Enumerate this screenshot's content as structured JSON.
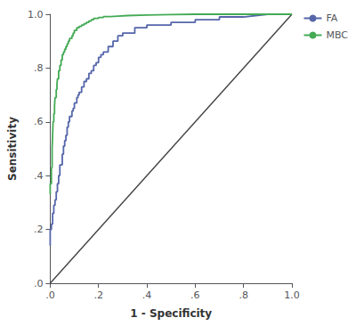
{
  "chart_data": {
    "type": "line",
    "title": "",
    "xlabel": "1 - Specificity",
    "ylabel": "Sensitivity",
    "xlim": [
      0.0,
      1.0
    ],
    "ylim": [
      0.0,
      1.0
    ],
    "xticks": [
      {
        "value": 0.0,
        "label": ".0"
      },
      {
        "value": 0.2,
        "label": ".2"
      },
      {
        "value": 0.4,
        "label": ".4"
      },
      {
        "value": 0.6,
        "label": ".6"
      },
      {
        "value": 0.8,
        "label": ".8"
      },
      {
        "value": 1.0,
        "label": "1.0"
      }
    ],
    "yticks": [
      {
        "value": 0.0,
        "label": ".0"
      },
      {
        "value": 0.2,
        "label": ".2"
      },
      {
        "value": 0.4,
        "label": ".4"
      },
      {
        "value": 0.6,
        "label": ".6"
      },
      {
        "value": 0.8,
        "label": ".8"
      },
      {
        "value": 1.0,
        "label": "1.0"
      }
    ],
    "grid": false,
    "legend": "upper right",
    "series": [
      {
        "color": "#444444",
        "x": [
          0,
          1
        ],
        "values": [
          0,
          1
        ]
      },
      {
        "name": "FA",
        "color": "#5566aa",
        "x": [
          0.0,
          0.0,
          0.005,
          0.005,
          0.01,
          0.01,
          0.015,
          0.015,
          0.02,
          0.02,
          0.025,
          0.025,
          0.03,
          0.03,
          0.035,
          0.035,
          0.04,
          0.04,
          0.05,
          0.05,
          0.055,
          0.055,
          0.06,
          0.06,
          0.065,
          0.065,
          0.07,
          0.07,
          0.075,
          0.075,
          0.08,
          0.08,
          0.09,
          0.09,
          0.095,
          0.095,
          0.1,
          0.1,
          0.11,
          0.11,
          0.115,
          0.115,
          0.12,
          0.12,
          0.13,
          0.13,
          0.14,
          0.14,
          0.15,
          0.15,
          0.16,
          0.16,
          0.17,
          0.17,
          0.18,
          0.18,
          0.19,
          0.19,
          0.2,
          0.2,
          0.21,
          0.21,
          0.22,
          0.22,
          0.24,
          0.24,
          0.26,
          0.26,
          0.28,
          0.28,
          0.3,
          0.3,
          0.35,
          0.35,
          0.4,
          0.4,
          0.5,
          0.5,
          0.6,
          0.6,
          0.7,
          0.7,
          0.8,
          0.9,
          1.0
        ],
        "values": [
          0.14,
          0.2,
          0.2,
          0.22,
          0.22,
          0.26,
          0.26,
          0.29,
          0.29,
          0.31,
          0.31,
          0.34,
          0.34,
          0.37,
          0.37,
          0.4,
          0.4,
          0.44,
          0.44,
          0.48,
          0.48,
          0.51,
          0.51,
          0.53,
          0.53,
          0.55,
          0.55,
          0.58,
          0.58,
          0.6,
          0.6,
          0.62,
          0.62,
          0.64,
          0.64,
          0.65,
          0.65,
          0.67,
          0.67,
          0.69,
          0.69,
          0.7,
          0.7,
          0.71,
          0.71,
          0.73,
          0.73,
          0.75,
          0.75,
          0.76,
          0.76,
          0.78,
          0.78,
          0.79,
          0.79,
          0.81,
          0.81,
          0.82,
          0.82,
          0.84,
          0.84,
          0.85,
          0.85,
          0.86,
          0.86,
          0.88,
          0.88,
          0.9,
          0.9,
          0.92,
          0.92,
          0.93,
          0.93,
          0.95,
          0.95,
          0.96,
          0.96,
          0.97,
          0.97,
          0.98,
          0.98,
          0.99,
          0.99,
          1.0,
          1.0
        ]
      },
      {
        "name": "MBC",
        "color": "#44aa55",
        "x": [
          0.0,
          0.0,
          0.005,
          0.005,
          0.008,
          0.008,
          0.01,
          0.01,
          0.012,
          0.012,
          0.015,
          0.015,
          0.018,
          0.018,
          0.02,
          0.02,
          0.025,
          0.025,
          0.028,
          0.028,
          0.03,
          0.03,
          0.035,
          0.035,
          0.04,
          0.04,
          0.045,
          0.045,
          0.05,
          0.05,
          0.055,
          0.055,
          0.06,
          0.06,
          0.065,
          0.065,
          0.07,
          0.07,
          0.075,
          0.075,
          0.08,
          0.08,
          0.09,
          0.09,
          0.095,
          0.095,
          0.1,
          0.1,
          0.11,
          0.11,
          0.12,
          0.12,
          0.13,
          0.13,
          0.14,
          0.14,
          0.15,
          0.15,
          0.16,
          0.16,
          0.17,
          0.17,
          0.18,
          0.18,
          0.2,
          0.2,
          0.22,
          0.22,
          0.25,
          0.25,
          0.28,
          0.28,
          0.32,
          0.32,
          0.4,
          0.4,
          0.5,
          0.6,
          0.7,
          0.8,
          0.9,
          1.0
        ],
        "values": [
          0.33,
          0.37,
          0.37,
          0.43,
          0.43,
          0.5,
          0.5,
          0.55,
          0.55,
          0.6,
          0.6,
          0.63,
          0.63,
          0.66,
          0.66,
          0.69,
          0.69,
          0.72,
          0.72,
          0.74,
          0.74,
          0.76,
          0.76,
          0.79,
          0.79,
          0.81,
          0.81,
          0.83,
          0.83,
          0.85,
          0.85,
          0.86,
          0.86,
          0.87,
          0.87,
          0.88,
          0.88,
          0.89,
          0.89,
          0.9,
          0.9,
          0.91,
          0.91,
          0.92,
          0.92,
          0.93,
          0.93,
          0.94,
          0.94,
          0.95,
          0.95,
          0.955,
          0.955,
          0.96,
          0.96,
          0.965,
          0.965,
          0.97,
          0.97,
          0.975,
          0.975,
          0.98,
          0.98,
          0.985,
          0.985,
          0.988,
          0.988,
          0.991,
          0.991,
          0.993,
          0.993,
          0.995,
          0.995,
          0.997,
          0.997,
          0.999,
          0.999,
          1.0,
          1.0,
          1.0,
          1.0,
          1.0
        ]
      }
    ]
  }
}
